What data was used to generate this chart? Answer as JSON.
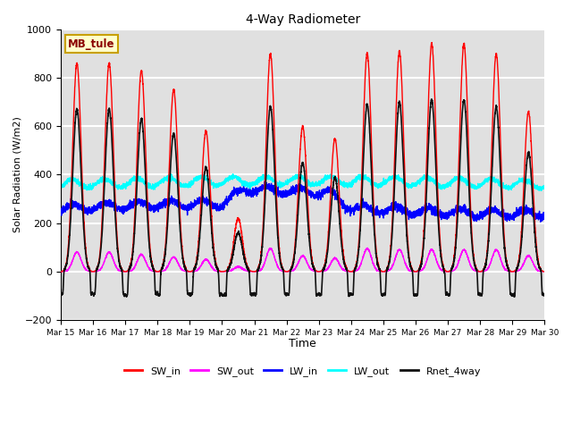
{
  "title": "4-Way Radiometer",
  "xlabel": "Time",
  "ylabel": "Solar Radiation (W/m2)",
  "ylim": [
    -200,
    1000
  ],
  "xlim": [
    0,
    15
  ],
  "bg_color": "#e0e0e0",
  "grid_color": "white",
  "station_label": "MB_tule",
  "station_label_color": "#8B0000",
  "station_box_color": "#ffffcc",
  "station_box_edge": "#c8a000",
  "xtick_labels": [
    "Mar 15",
    "Mar 16",
    "Mar 17",
    "Mar 18",
    "Mar 19",
    "Mar 20",
    "Mar 21",
    "Mar 22",
    "Mar 23",
    "Mar 24",
    "Mar 25",
    "Mar 26",
    "Mar 27",
    "Mar 28",
    "Mar 29",
    "Mar 30"
  ],
  "legend_entries": [
    "SW_in",
    "SW_out",
    "LW_in",
    "LW_out",
    "Rnet_4way"
  ],
  "line_colors": [
    "red",
    "magenta",
    "blue",
    "cyan",
    "#111111"
  ],
  "line_widths": [
    1.0,
    1.0,
    1.0,
    1.0,
    1.2
  ],
  "peaks_sw_in": [
    860,
    860,
    830,
    750,
    580,
    220,
    900,
    600,
    550,
    900,
    910,
    940,
    940,
    900,
    660
  ],
  "peaks_sw_out": [
    80,
    80,
    70,
    60,
    50,
    20,
    95,
    65,
    55,
    95,
    90,
    90,
    90,
    90,
    65
  ],
  "peaks_rnet": [
    670,
    670,
    630,
    570,
    430,
    160,
    680,
    450,
    390,
    690,
    700,
    710,
    710,
    680,
    490
  ]
}
